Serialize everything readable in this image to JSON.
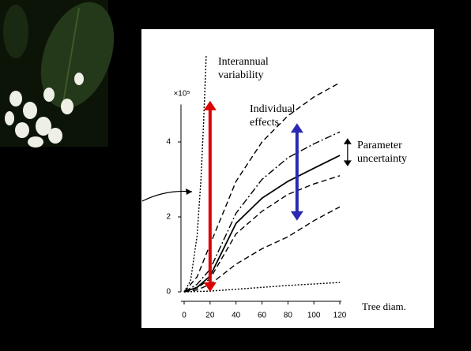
{
  "chart_data": {
    "type": "line",
    "y_multiplier": "×10⁵",
    "xlabel": "Tree diam.",
    "xlim": [
      0,
      120
    ],
    "ylim": [
      0,
      5
    ],
    "xticks": [
      0,
      20,
      40,
      60,
      80,
      100,
      120
    ],
    "yticks": [
      0,
      2,
      4
    ],
    "series": [
      {
        "style": "dotted",
        "color": "#000000",
        "x": [
          0,
          5,
          10,
          13,
          15,
          17
        ],
        "values": [
          0,
          0.3,
          1.5,
          3,
          4.5,
          6.3
        ]
      },
      {
        "style": "dashed",
        "color": "#000000",
        "x": [
          0,
          10,
          20,
          40,
          60,
          80,
          100,
          120
        ],
        "values": [
          0,
          0.4,
          1.26,
          2.95,
          4.0,
          4.7,
          5.2,
          5.58
        ]
      },
      {
        "style": "dashdot",
        "color": "#000000",
        "x": [
          0,
          10,
          20,
          40,
          60,
          80,
          100,
          120
        ],
        "values": [
          0,
          0.2,
          0.6,
          2.1,
          3.0,
          3.58,
          3.95,
          4.27
        ]
      },
      {
        "style": "solid",
        "color": "#000000",
        "x": [
          0,
          10,
          20,
          40,
          60,
          80,
          100,
          120
        ],
        "values": [
          0,
          0.12,
          0.42,
          1.83,
          2.5,
          2.95,
          3.3,
          3.64
        ]
      },
      {
        "style": "dashed",
        "color": "#000000",
        "x": [
          0,
          10,
          20,
          40,
          60,
          80,
          100,
          120
        ],
        "values": [
          0,
          0.1,
          0.35,
          1.55,
          2.15,
          2.6,
          2.88,
          3.1
        ]
      },
      {
        "style": "dashed",
        "color": "#000000",
        "x": [
          0,
          10,
          20,
          40,
          60,
          80,
          100,
          120
        ],
        "values": [
          0,
          0.05,
          0.2,
          0.74,
          1.15,
          1.47,
          1.9,
          2.27
        ]
      },
      {
        "style": "dotted",
        "color": "#000000",
        "x": [
          0,
          20,
          40,
          60,
          80,
          100,
          120
        ],
        "values": [
          0,
          0.02,
          0.07,
          0.12,
          0.17,
          0.21,
          0.25
        ]
      }
    ],
    "arrows": [
      {
        "color": "#dd0000",
        "x": 20,
        "from": 0,
        "to": 5.1,
        "lines": [
          "Interannual",
          "variability"
        ]
      },
      {
        "color": "#2a2ab0",
        "x": 87,
        "from": 1.9,
        "to": 4.5,
        "lines": [
          "Individual",
          "effects"
        ]
      },
      {
        "color": "#000000",
        "x": 126,
        "from": 3.35,
        "to": 4.1,
        "lines": [
          "Parameter",
          "uncertainty"
        ]
      }
    ]
  }
}
